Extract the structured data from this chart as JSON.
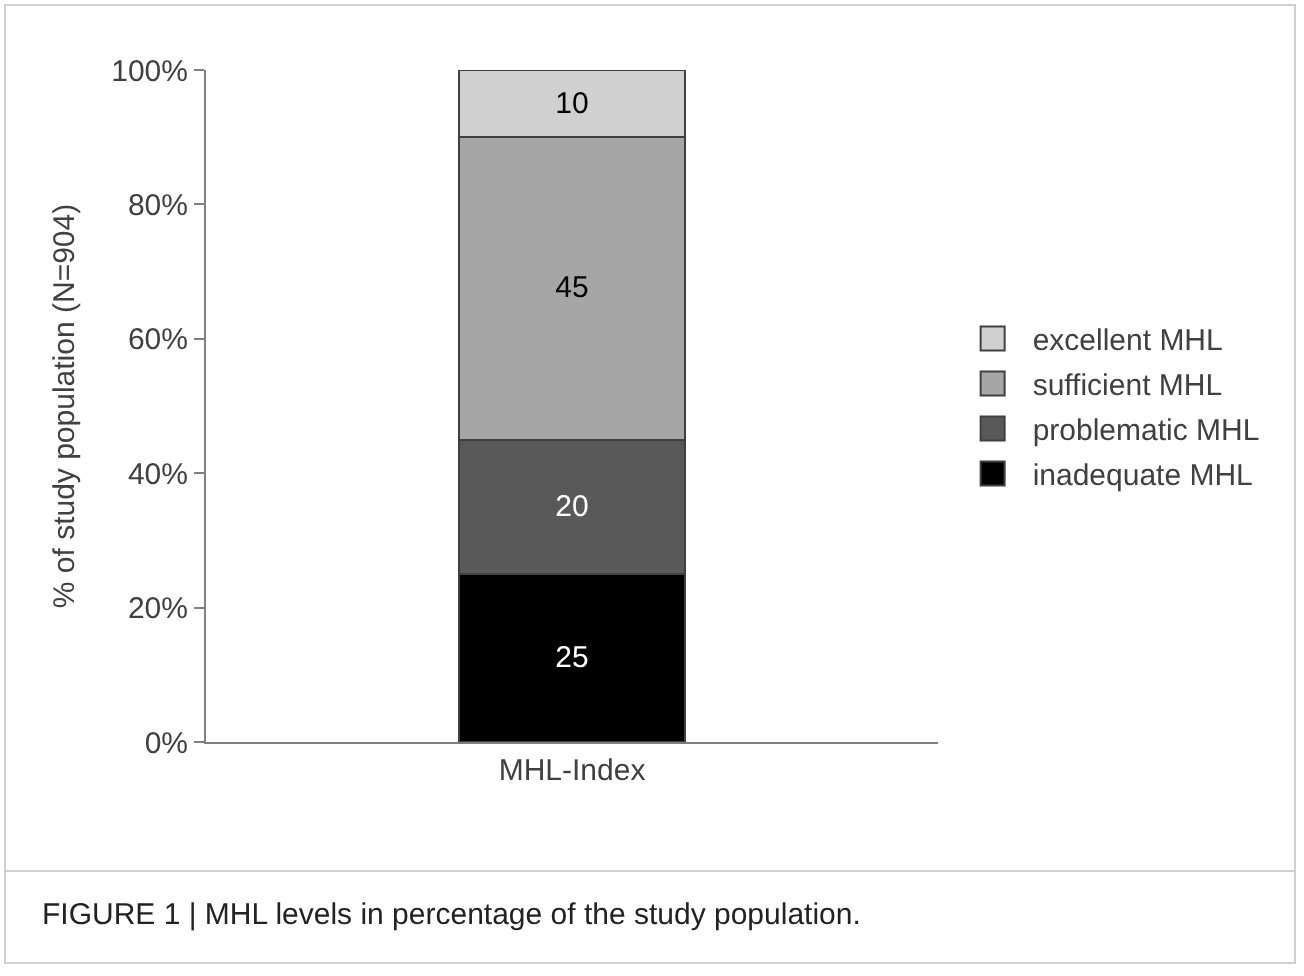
{
  "chart_data": {
    "type": "bar",
    "stacked": true,
    "categories": [
      "MHL-Index"
    ],
    "series": [
      {
        "name": "inadequate MHL",
        "color": "#000000",
        "values": [
          25
        ]
      },
      {
        "name": "problematic MHL",
        "color": "#595959",
        "values": [
          20
        ]
      },
      {
        "name": "sufficient MHL",
        "color": "#a6a6a6",
        "values": [
          45
        ]
      },
      {
        "name": "excellent MHL",
        "color": "#d0d0d0",
        "values": [
          10
        ]
      }
    ],
    "ylabel": "% of study population (N=904)",
    "ylim": [
      0,
      100
    ],
    "yticks": [
      {
        "value": 0,
        "label": "0%"
      },
      {
        "value": 20,
        "label": "20%"
      },
      {
        "value": 40,
        "label": "40%"
      },
      {
        "value": 60,
        "label": "60%"
      },
      {
        "value": 80,
        "label": "80%"
      },
      {
        "value": 100,
        "label": "100%"
      }
    ],
    "grid": false,
    "legend": "right",
    "data_labels": true,
    "annotations": [
      "FIGURE 1 | MHL levels in percentage of the study population."
    ]
  }
}
